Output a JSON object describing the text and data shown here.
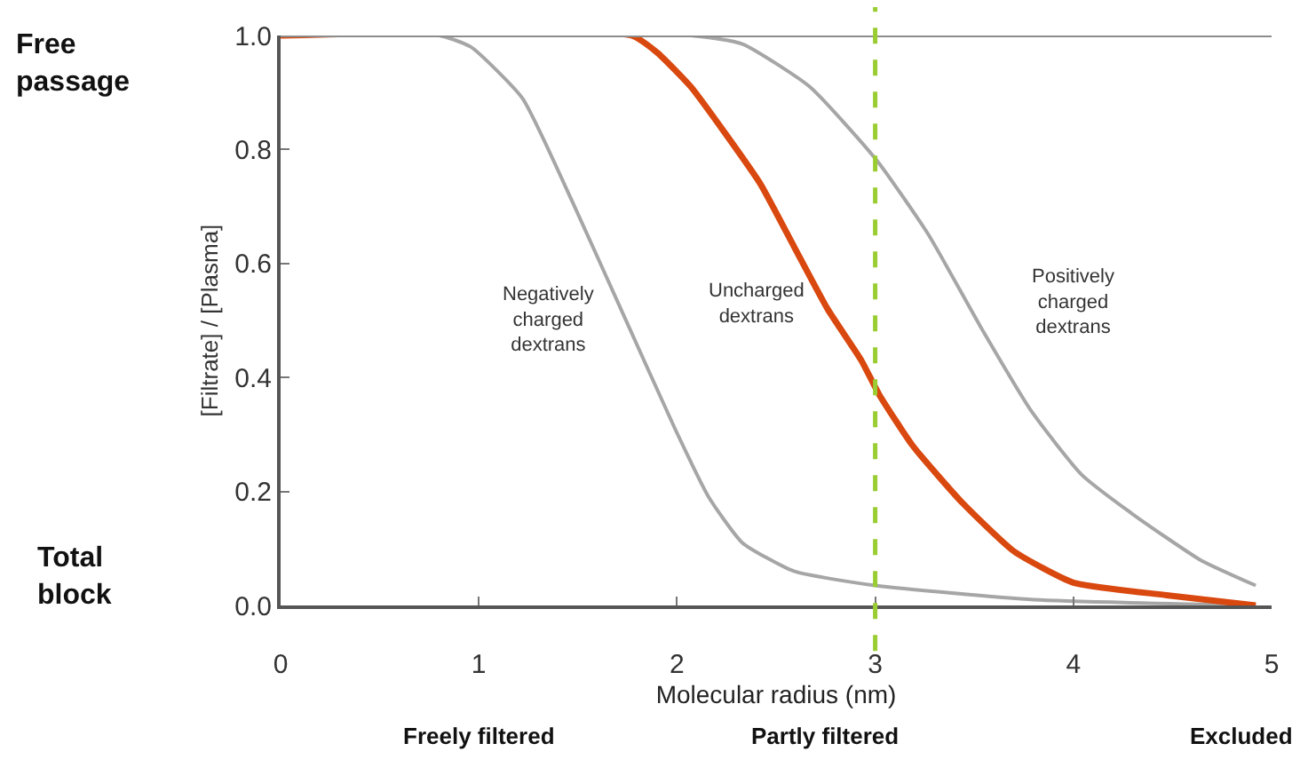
{
  "chart_data": {
    "type": "line",
    "xlabel": "Molecular radius (nm)",
    "ylabel": "[Filtrate] / [Plasma]",
    "xlim": [
      0,
      5
    ],
    "xticks": [
      0,
      1,
      2,
      3,
      4,
      5
    ],
    "ylim": [
      0,
      1
    ],
    "yticks": [
      {
        "value": 0,
        "label": "0.0"
      },
      0.2,
      0.4,
      0.6,
      0.8,
      {
        "value": 1,
        "label": "1.0"
      }
    ],
    "legend": false,
    "marker": "none",
    "line_style": "solid",
    "series": [
      {
        "name": "Negatively\ncharged\ndextrans",
        "color": "#a6a6a6",
        "x": [
          0,
          0.8,
          0.96,
          1.22,
          1.47,
          1.73,
          1.99,
          2.16,
          2.33,
          2.59,
          3.0,
          3.8,
          4.92
        ],
        "values": [
          1,
          1,
          0.98,
          0.89,
          0.71,
          0.51,
          0.31,
          0.19,
          0.11,
          0.06,
          0.035,
          0.01,
          0
        ]
      },
      {
        "name": "Uncharged\ndextrans",
        "color": "#d9480f",
        "x": [
          0,
          1.77,
          1.9,
          2.07,
          2.24,
          2.42,
          2.59,
          2.76,
          2.93,
          3.02,
          3.19,
          3.44,
          3.7,
          4.0,
          4.47,
          4.92
        ],
        "values": [
          1,
          1,
          0.97,
          0.91,
          0.83,
          0.74,
          0.63,
          0.52,
          0.43,
          0.37,
          0.28,
          0.18,
          0.095,
          0.04,
          0.018,
          0
        ]
      },
      {
        "name": "Positively\ncharged\ndextrans",
        "color": "#a6a6a6",
        "x": [
          0,
          2.07,
          2.33,
          2.67,
          3.01,
          3.27,
          3.53,
          3.79,
          4.04,
          4.3,
          4.64,
          4.92
        ],
        "values": [
          1,
          1,
          0.985,
          0.91,
          0.78,
          0.65,
          0.49,
          0.34,
          0.23,
          0.16,
          0.08,
          0.035
        ]
      }
    ],
    "ref_lines": [
      {
        "axis": "y",
        "value": 1,
        "color": "#8c8c8c",
        "line_style": "solid"
      },
      {
        "axis": "x",
        "value": 3,
        "color": "#9acd32",
        "line_style": "dashed"
      }
    ],
    "annotations": [
      "Free passage",
      "Total block",
      "Freely filtered",
      "Partly filtered",
      "Excluded"
    ]
  }
}
